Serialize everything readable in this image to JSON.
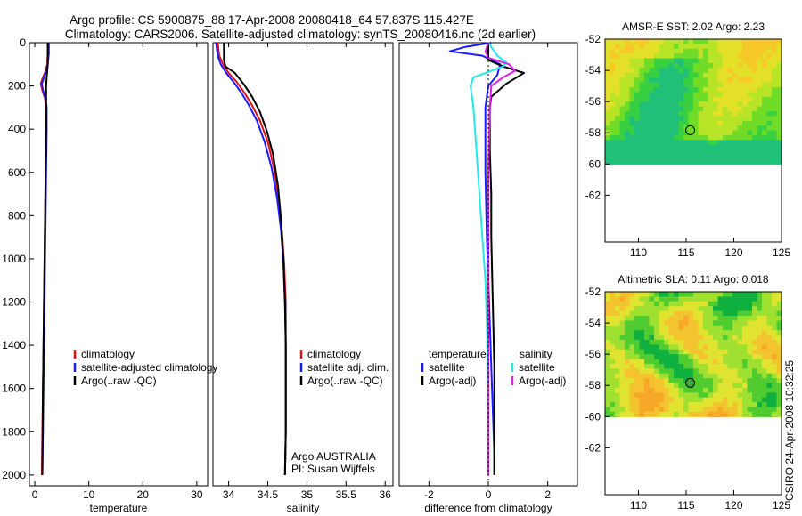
{
  "header": {
    "line1": "Argo profile: CS 5900875_88 17-Apr-2008 20080418_64 57.837S 115.427E",
    "line2": "Climatology: CARS2006. Satellite-adjusted climatology: synTS_20080416.nc (2d earlier)"
  },
  "side_caption": "CSIRO 24-Apr-2008 10:32:25",
  "colors": {
    "climatology": "#e01010",
    "satellite": "#1a1aff",
    "argo": "#000000",
    "satellite_sal": "#22e8ee",
    "argo_sal": "#e020e0"
  },
  "chart_data": [
    {
      "id": "temperature",
      "type": "line",
      "xlabel": "temperature",
      "ylabel": "",
      "xlim": [
        -1,
        32
      ],
      "ylim": [
        2050,
        0
      ],
      "xticks": [
        0,
        10,
        20,
        30
      ],
      "yticks": [
        0,
        200,
        400,
        600,
        800,
        1000,
        1200,
        1400,
        1600,
        1800,
        2000
      ],
      "legend": {
        "placement": "center-right",
        "entries": [
          "climatology",
          "satellite-adjusted climatology",
          "Argo(..raw -QC)"
        ]
      },
      "series": [
        {
          "name": "climatology",
          "color": "#e01010",
          "x": [
            2.4,
            2.4,
            2.3,
            2.0,
            1.5,
            1.1,
            1.4,
            1.9,
            2.1,
            2.1,
            2.0,
            1.9,
            1.8,
            1.7,
            1.6,
            1.5,
            1.4,
            1.3
          ],
          "y": [
            0,
            50,
            100,
            130,
            160,
            190,
            220,
            260,
            300,
            400,
            600,
            800,
            1000,
            1200,
            1400,
            1600,
            1800,
            2000
          ]
        },
        {
          "name": "satellite-adjusted climatology",
          "color": "#1a1aff",
          "x": [
            2.6,
            2.6,
            2.4,
            2.1,
            1.7,
            1.3,
            1.5,
            2.0,
            2.2,
            2.2,
            2.1,
            2.0,
            1.9,
            1.8,
            1.7,
            1.6,
            1.5,
            1.4
          ],
          "y": [
            0,
            50,
            100,
            130,
            160,
            190,
            220,
            260,
            300,
            400,
            600,
            800,
            1000,
            1200,
            1400,
            1600,
            1800,
            2000
          ]
        },
        {
          "name": "Argo(..raw -QC)",
          "color": "#000000",
          "x": [
            2.4,
            2.4,
            2.4,
            2.3,
            2.2,
            2.1,
            2.1,
            2.1,
            2.1,
            2.0,
            1.9,
            1.8,
            1.7,
            1.6,
            1.5,
            1.4
          ],
          "y": [
            0,
            50,
            100,
            130,
            160,
            200,
            250,
            300,
            400,
            600,
            800,
            1000,
            1200,
            1400,
            1600,
            2000
          ]
        }
      ]
    },
    {
      "id": "salinity",
      "type": "line",
      "xlabel": "salinity",
      "ylabel": "",
      "xlim": [
        33.8,
        36.1
      ],
      "ylim": [
        2050,
        0
      ],
      "xticks": [
        34,
        34.5,
        35,
        35.5,
        36
      ],
      "yticks": [],
      "legend": {
        "placement": "center-right",
        "entries": [
          "climatology",
          "satellite adj. clim.",
          "Argo(..raw -QC)"
        ]
      },
      "annotation": [
        "Argo AUSTRALIA",
        "PI: Susan Wijffels"
      ],
      "series": [
        {
          "name": "climatology",
          "color": "#e01010",
          "x": [
            33.86,
            33.88,
            33.93,
            34.0,
            34.1,
            34.2,
            34.3,
            34.4,
            34.5,
            34.58,
            34.64,
            34.68,
            34.71,
            34.73,
            34.73,
            34.73,
            34.73,
            34.72
          ],
          "y": [
            0,
            60,
            100,
            140,
            180,
            230,
            290,
            360,
            460,
            580,
            720,
            870,
            1020,
            1200,
            1400,
            1600,
            1800,
            2000
          ]
        },
        {
          "name": "satellite adj. clim.",
          "color": "#1a1aff",
          "x": [
            33.84,
            33.86,
            33.9,
            33.97,
            34.06,
            34.16,
            34.26,
            34.36,
            34.46,
            34.55,
            34.62,
            34.67,
            34.7,
            34.72,
            34.73,
            34.73,
            34.73,
            34.72
          ],
          "y": [
            0,
            60,
            100,
            140,
            180,
            230,
            290,
            360,
            460,
            580,
            720,
            870,
            1020,
            1200,
            1400,
            1600,
            1800,
            2000
          ]
        },
        {
          "name": "Argo(..raw -QC)",
          "color": "#000000",
          "x": [
            33.94,
            33.94,
            33.96,
            34.08,
            34.19,
            34.3,
            34.4,
            34.49,
            34.57,
            34.63,
            34.67,
            34.7,
            34.72,
            34.73,
            34.73,
            34.73,
            34.72
          ],
          "y": [
            0,
            80,
            110,
            140,
            190,
            250,
            320,
            410,
            520,
            660,
            820,
            1000,
            1200,
            1400,
            1600,
            1800,
            2000
          ]
        }
      ]
    },
    {
      "id": "difference",
      "type": "line",
      "xlabel": "difference from climatology",
      "ylabel": "",
      "xlim": [
        -3,
        3
      ],
      "ylim": [
        2050,
        0
      ],
      "xticks": [
        -2,
        0,
        2
      ],
      "yticks": [],
      "legend": {
        "placement": "center",
        "groups": [
          {
            "title": "temperature",
            "entries": [
              "satellite",
              "Argo(-adj)"
            ]
          },
          {
            "title": "salinity",
            "entries": [
              "satellite",
              "Argo(-adj)"
            ]
          }
        ]
      },
      "series": [
        {
          "name": "temperature satellite",
          "color": "#1a1aff",
          "x": [
            0.1,
            -0.8,
            -1.3,
            -0.2,
            0.4,
            0.3,
            0.0,
            -0.1,
            -0.1,
            -0.05,
            0.0,
            0.05,
            0.1,
            0.15,
            0.2,
            0.2
          ],
          "y": [
            0,
            20,
            40,
            60,
            100,
            150,
            200,
            300,
            600,
            900,
            1100,
            1300,
            1500,
            1700,
            1900,
            2000
          ]
        },
        {
          "name": "temperature Argo(-adj)",
          "color": "#000000",
          "x": [
            0,
            0,
            0.5,
            1.2,
            0.6,
            0.1,
            0.05,
            0.05,
            0.1,
            0.1,
            0.15,
            0.2,
            0.2,
            0.2
          ],
          "y": [
            0,
            80,
            110,
            140,
            190,
            250,
            300,
            500,
            700,
            900,
            1200,
            1500,
            1800,
            2000
          ]
        },
        {
          "name": "salinity satellite",
          "color": "#22e8ee",
          "x": [
            0,
            0.3,
            0.6,
            0.5,
            -0.5,
            -0.6,
            -0.5,
            -0.4,
            -0.3,
            -0.2,
            -0.1,
            -0.05,
            0,
            0
          ],
          "y": [
            0,
            60,
            90,
            110,
            160,
            200,
            300,
            500,
            700,
            900,
            1100,
            1300,
            1600,
            2000
          ]
        },
        {
          "name": "salinity Argo(-adj)",
          "color": "#e020e0",
          "x": [
            0,
            -0.1,
            0.0,
            0.7,
            0.9,
            0.5,
            0.1,
            0.05,
            0.0,
            0.0,
            0.0
          ],
          "y": [
            0,
            40,
            70,
            100,
            130,
            160,
            200,
            300,
            600,
            1200,
            2000
          ]
        }
      ]
    },
    {
      "id": "sst",
      "type": "heatmap",
      "title": "AMSR-E SST: 2.02 Argo: 2.23",
      "xlim": [
        106.5,
        125
      ],
      "ylim": [
        -65,
        -52
      ],
      "xticks": [
        110,
        115,
        120,
        125
      ],
      "yticks": [
        -52,
        -54,
        -56,
        -58,
        -60,
        -62
      ],
      "data_extent_lat": [
        -60,
        -52
      ],
      "marker": {
        "lon": 115.427,
        "lat": -57.837,
        "fill": "none"
      },
      "palette": [
        "#20c078",
        "#38d040",
        "#70dc28",
        "#b8e428",
        "#e4e028",
        "#f6c828"
      ]
    },
    {
      "id": "sla",
      "type": "heatmap",
      "title": "Altimetric SLA: 0.11 Argo: 0.018",
      "xlim": [
        106.5,
        125
      ],
      "ylim": [
        -65,
        -52
      ],
      "xticks": [
        110,
        115,
        120,
        125
      ],
      "yticks": [
        -52,
        -54,
        -56,
        -58,
        -60,
        -62
      ],
      "data_extent_lat": [
        -60,
        -52
      ],
      "marker": {
        "lon": 115.427,
        "lat": -57.837,
        "fill": "#3aa83a"
      },
      "palette": [
        "#10b040",
        "#50cc30",
        "#a0e030",
        "#e0e430",
        "#f4c430",
        "#f8a828"
      ]
    }
  ]
}
